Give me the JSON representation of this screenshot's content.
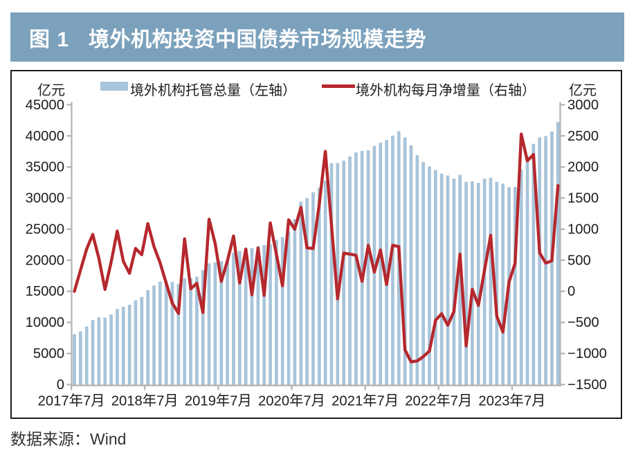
{
  "banner": {
    "tag": "图 1",
    "title": "境外机构投资中国债券市场规模走势",
    "bg_color": "#7ba1bc",
    "text_color": "#ffffff"
  },
  "legend": {
    "left_unit": "亿元",
    "right_unit": "亿元",
    "bar_series_label": "境外机构托管总量（左轴）",
    "line_series_label": "境外机构每月净增量（右轴）"
  },
  "source_note": "数据来源：Wind",
  "colors": {
    "bar": "#a8c4da",
    "line": "#b5282d",
    "axis": "#b2b2b2",
    "label": "#1d1d1d"
  },
  "chart_data": {
    "type": "bar+line",
    "title": "境外机构投资中国债券市场规模走势",
    "x_tick_labels": [
      "2017年7月",
      "2018年7月",
      "2019年7月",
      "2020年7月",
      "2021年7月",
      "2022年7月",
      "2023年7月"
    ],
    "x_months": [
      "2017-07",
      "2017-08",
      "2017-09",
      "2017-10",
      "2017-11",
      "2017-12",
      "2018-01",
      "2018-02",
      "2018-03",
      "2018-04",
      "2018-05",
      "2018-06",
      "2018-07",
      "2018-08",
      "2018-09",
      "2018-10",
      "2018-11",
      "2018-12",
      "2019-01",
      "2019-02",
      "2019-03",
      "2019-04",
      "2019-05",
      "2019-06",
      "2019-07",
      "2019-08",
      "2019-09",
      "2019-10",
      "2019-11",
      "2019-12",
      "2020-01",
      "2020-02",
      "2020-03",
      "2020-04",
      "2020-05",
      "2020-06",
      "2020-07",
      "2020-08",
      "2020-09",
      "2020-10",
      "2020-11",
      "2020-12",
      "2021-01",
      "2021-02",
      "2021-03",
      "2021-04",
      "2021-05",
      "2021-06",
      "2021-07",
      "2021-08",
      "2021-09",
      "2021-10",
      "2021-11",
      "2021-12",
      "2022-01",
      "2022-02",
      "2022-03",
      "2022-04",
      "2022-05",
      "2022-06",
      "2022-07",
      "2022-08",
      "2022-09",
      "2022-10",
      "2022-11",
      "2022-12",
      "2023-01",
      "2023-02",
      "2023-03",
      "2023-04",
      "2023-05",
      "2023-06",
      "2023-07",
      "2023-08",
      "2023-09",
      "2023-10",
      "2023-11",
      "2023-12",
      "2024-01",
      "2024-02"
    ],
    "left_axis": {
      "unit": "亿元",
      "min": 0,
      "max": 45000,
      "step": 5000
    },
    "right_axis": {
      "unit": "亿元",
      "min": -1500,
      "max": 3000,
      "step": 500
    },
    "grid": false,
    "legend_position": "top",
    "series": [
      {
        "name": "境外机构托管总量（左轴）",
        "type": "bar",
        "axis": "left",
        "values": [
          8110,
          8570,
          9350,
          10390,
          10850,
          10780,
          11270,
          12170,
          12500,
          12830,
          13550,
          14100,
          15210,
          15930,
          16570,
          16700,
          16510,
          16160,
          17090,
          17150,
          17370,
          18450,
          19500,
          19660,
          19860,
          19950,
          21200,
          21500,
          21950,
          21970,
          22290,
          22450,
          22620,
          23250,
          23740,
          24630,
          26600,
          29400,
          30020,
          30940,
          31690,
          32810,
          35600,
          35650,
          36000,
          36700,
          37340,
          37590,
          37680,
          38390,
          38900,
          39320,
          40050,
          40760,
          39750,
          38500,
          36900,
          35800,
          35100,
          34520,
          33920,
          33620,
          33150,
          33750,
          32610,
          32700,
          32450,
          33130,
          33270,
          32600,
          32330,
          31730,
          31790,
          34620,
          36650,
          38730,
          39760,
          39970,
          40710,
          42240
        ]
      },
      {
        "name": "境外机构每月净增量（右轴）",
        "type": "line",
        "axis": "right",
        "values": [
          0,
          340,
          680,
          915,
          530,
          30,
          470,
          970,
          480,
          290,
          690,
          590,
          1090,
          720,
          460,
          130,
          -190,
          -355,
          845,
          40,
          130,
          -340,
          1160,
          770,
          160,
          490,
          890,
          135,
          680,
          -55,
          695,
          -65,
          1100,
          595,
          90,
          1150,
          1000,
          1350,
          700,
          690,
          1400,
          2250,
          1060,
          -120,
          615,
          600,
          580,
          160,
          740,
          310,
          665,
          110,
          740,
          720,
          -940,
          -1135,
          -1120,
          -1050,
          -960,
          -465,
          -360,
          -545,
          -325,
          600,
          -880,
          30,
          -225,
          340,
          900,
          -400,
          -655,
          150,
          450,
          2530,
          2100,
          2200,
          620,
          455,
          490,
          1700
        ]
      }
    ]
  }
}
